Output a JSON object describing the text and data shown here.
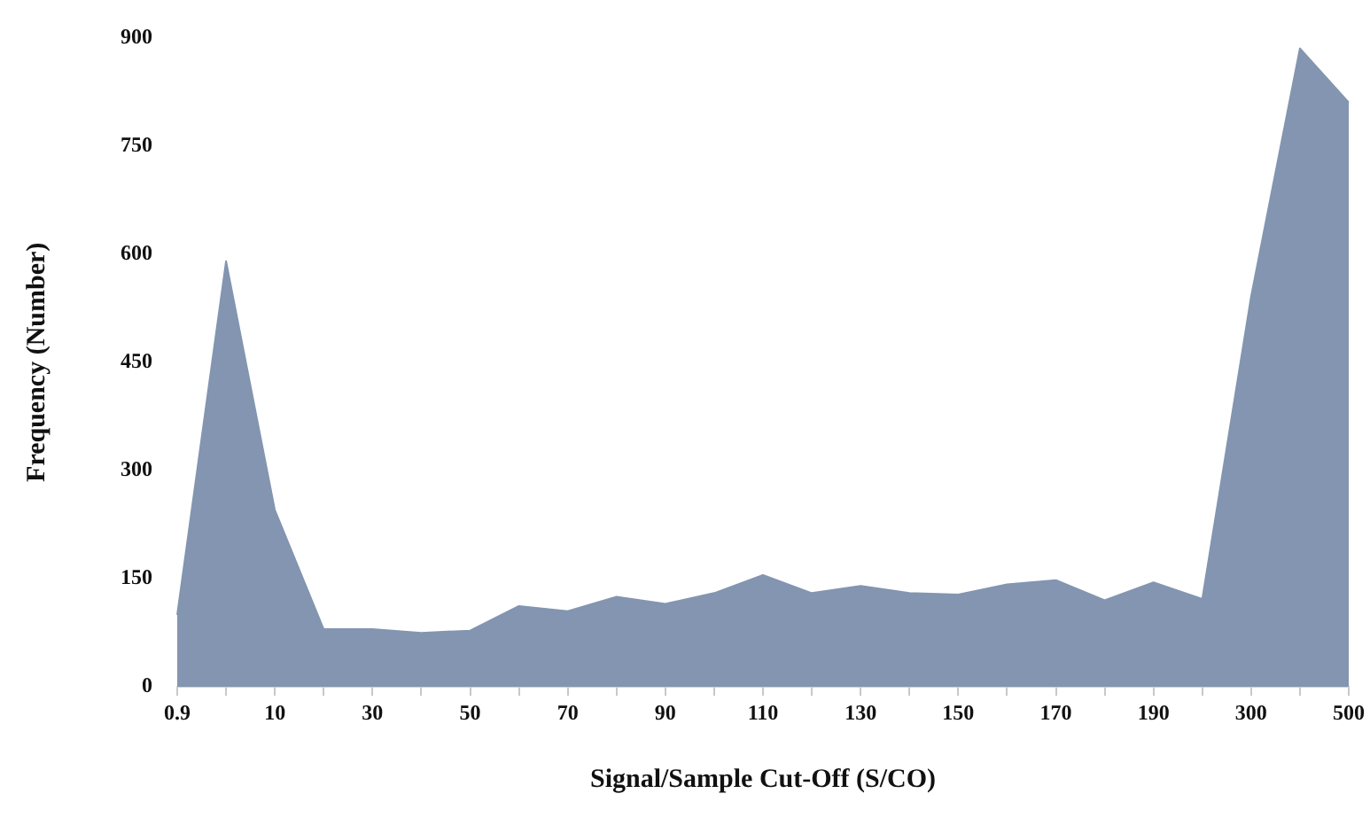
{
  "chart_data": {
    "type": "area",
    "xlabel": "Signal/Sample Cut-Off (S/CO)",
    "ylabel": "Frequency (Number)",
    "categories": [
      "0.9",
      null,
      "10",
      null,
      "30",
      null,
      "50",
      null,
      "70",
      null,
      "90",
      null,
      "110",
      null,
      "130",
      null,
      "150",
      null,
      "170",
      null,
      "190",
      null,
      "300",
      null,
      "500"
    ],
    "values": [
      100,
      590,
      245,
      80,
      80,
      75,
      78,
      112,
      105,
      125,
      115,
      130,
      155,
      130,
      140,
      130,
      128,
      142,
      148,
      120,
      145,
      122,
      541,
      885,
      810
    ],
    "color": "#8395b0",
    "ylim": [
      0,
      900
    ],
    "yticks": [
      0,
      150,
      300,
      450,
      600,
      750,
      900
    ],
    "grid": false,
    "legend": false
  }
}
